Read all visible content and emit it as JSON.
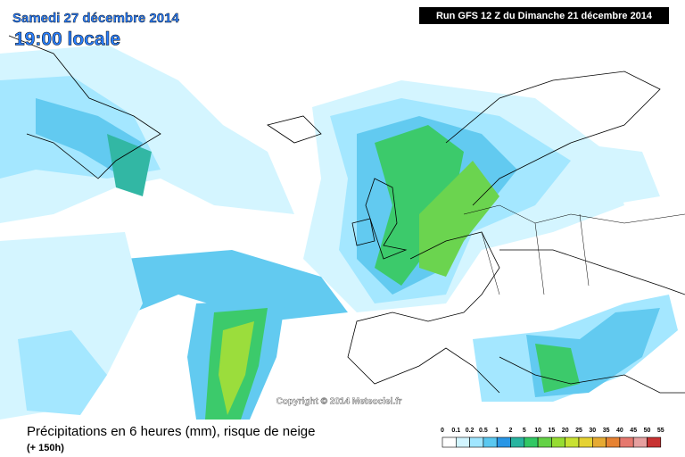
{
  "header": {
    "date": "Samedi 27 décembre 2014",
    "time": "19:00 locale",
    "run": "Run GFS 12 Z du Dimanche 21 décembre 2014"
  },
  "copyright": "Copyright © 2014 Meteociel.fr",
  "footer": {
    "title": "Précipitations en 6 heures (mm), risque de neige",
    "lead": "(+ 150h)"
  },
  "legend": {
    "bounds": [
      0,
      0.1,
      0.2,
      0.5,
      1,
      2,
      5,
      10,
      15,
      20,
      25,
      30,
      35,
      40,
      45,
      50,
      55
    ],
    "colors": [
      "#ffffff",
      "#d2f5ff",
      "#a0e6ff",
      "#5ac8f0",
      "#2896e6",
      "#28b4a0",
      "#32c864",
      "#64d246",
      "#96dc32",
      "#c8e132",
      "#e6d232",
      "#e6aa32",
      "#e68232",
      "#e6786e",
      "#e6a0a0",
      "#c83232"
    ]
  }
}
